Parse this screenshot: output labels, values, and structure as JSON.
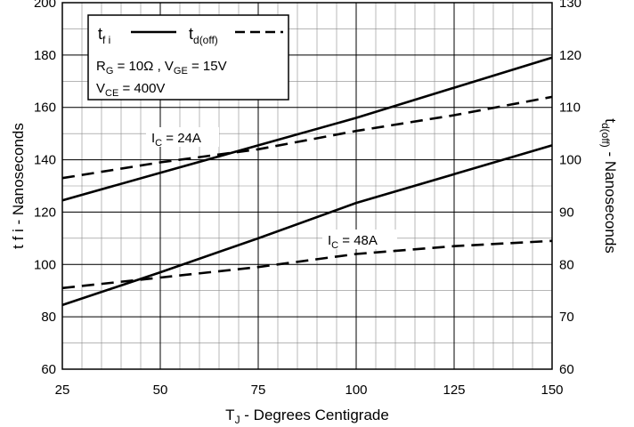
{
  "chart_data": {
    "type": "line",
    "xlabel_main": "T",
    "xlabel_sub": "J",
    "xlabel_rest": " - Degrees Centigrade",
    "ylabel_left": "t f i - Nanoseconds",
    "ylabel_right_main": "t",
    "ylabel_right_sub": "d(off)",
    "ylabel_right_rest": " - Nanoseconds",
    "xlim": [
      25,
      150
    ],
    "ylim_left": [
      60,
      200
    ],
    "ylim_right": [
      60,
      130
    ],
    "x_ticks": [
      25,
      50,
      75,
      100,
      125,
      150
    ],
    "y_ticks_left": [
      60,
      80,
      100,
      120,
      140,
      160,
      180,
      200
    ],
    "y_ticks_right": [
      60,
      70,
      80,
      90,
      100,
      110,
      120,
      130
    ],
    "grid": true,
    "legend": {
      "position": "top-left",
      "tfi_main": "t",
      "tfi_sub": "f i",
      "tdoff_main": "t",
      "tdoff_sub": "d(off)",
      "line1_parts": [
        "R",
        "G",
        " = 10Ω ,  V",
        "GE",
        " = 15V"
      ],
      "line2_parts": [
        "V",
        "CE",
        " = 400V"
      ]
    },
    "annotations": [
      {
        "prefix": "I",
        "sub": "C",
        "rest": " = 24A"
      },
      {
        "prefix": "I",
        "sub": "C",
        "rest": " = 48A"
      }
    ],
    "series": [
      {
        "quantity": "t_fi",
        "axis": "left",
        "style": "solid",
        "condition": "IC = 24A",
        "x": [
          25,
          50,
          75,
          100,
          125,
          150
        ],
        "y": [
          124.5,
          135,
          145.5,
          156,
          167.5,
          179
        ]
      },
      {
        "quantity": "t_fi",
        "axis": "left",
        "style": "solid",
        "condition": "IC = 48A",
        "x": [
          25,
          50,
          75,
          100,
          125,
          150
        ],
        "y": [
          84.5,
          97,
          110,
          123.5,
          134.5,
          145.5
        ]
      },
      {
        "quantity": "t_d(off)",
        "axis": "right",
        "style": "dashed",
        "condition": "IC = 24A",
        "x": [
          25,
          50,
          75,
          100,
          125,
          150
        ],
        "y": [
          96.5,
          99.5,
          102,
          105.5,
          108.5,
          112
        ]
      },
      {
        "quantity": "t_d(off)",
        "axis": "right",
        "style": "dashed",
        "condition": "IC = 48A",
        "x": [
          25,
          50,
          75,
          100,
          125,
          150
        ],
        "y": [
          75.5,
          77.5,
          79.5,
          82,
          83.5,
          84.5
        ]
      }
    ]
  }
}
